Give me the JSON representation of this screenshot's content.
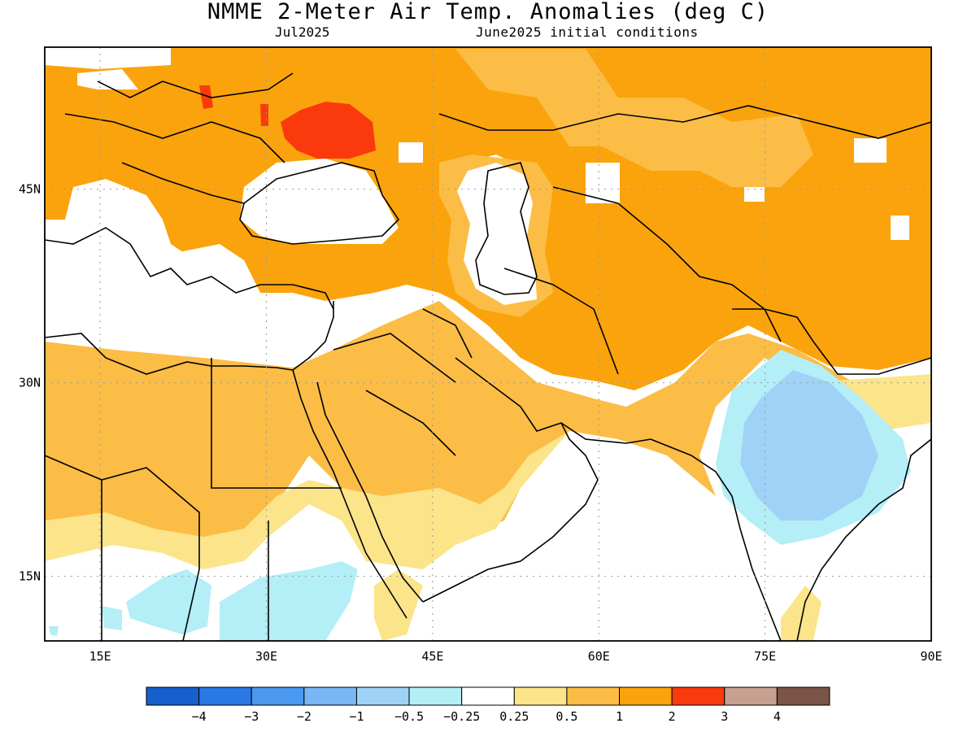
{
  "title": "NMME 2-Meter Air Temp. Anomalies (deg C)",
  "subtitle_left": "Jul2025",
  "subtitle_right": "June2025 initial conditions",
  "map": {
    "lon_range": [
      10,
      90
    ],
    "lat_range": [
      10,
      56
    ],
    "x_ticks": [
      "15E",
      "30E",
      "45E",
      "60E",
      "75E",
      "90E"
    ],
    "y_ticks": [
      "15N",
      "30N",
      "45N"
    ],
    "gridlines": "dotted"
  },
  "colorbar": {
    "colors": [
      "#1560cc",
      "#2a78e6",
      "#4a98f0",
      "#78b6f4",
      "#a0d2f8",
      "#b4eef6",
      "#ffffff",
      "#fbe48a",
      "#fbbd46",
      "#fba30c",
      "#fa3a0c",
      "#c7a090",
      "#7a5444"
    ],
    "labels": [
      "−4",
      "−3",
      "−2",
      "−1",
      "−0.5",
      "−0.25",
      "0.25",
      "0.5",
      "1",
      "2",
      "3",
      "4"
    ]
  }
}
